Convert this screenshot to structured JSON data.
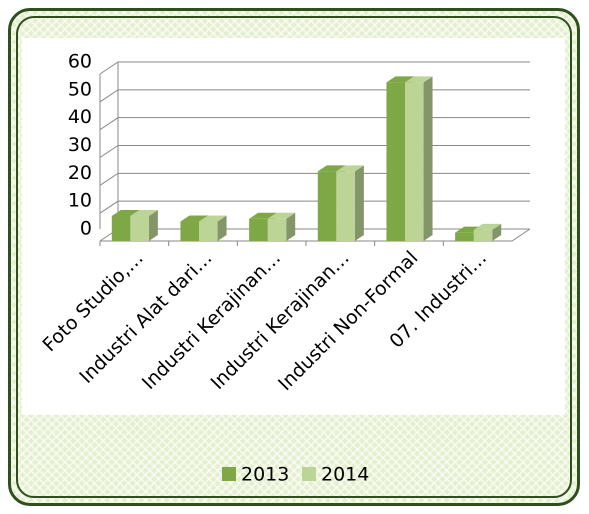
{
  "chart_data": {
    "type": "bar3d",
    "categories": [
      "Foto Studio,…",
      "Industri Alat dari…",
      "Industri Kerajinan…",
      "Industri Kerajinan…",
      "Industri Non-Formal",
      "07.  Industri…"
    ],
    "series": [
      {
        "name": "2013",
        "color": "#7ea845",
        "values": [
          9,
          7,
          8,
          25,
          57,
          3
        ]
      },
      {
        "name": "2014",
        "color": "#bcd596",
        "values": [
          9,
          7,
          8,
          25,
          57,
          4
        ]
      }
    ],
    "ylim": [
      0,
      60
    ],
    "yticks": [
      0,
      10,
      20,
      30,
      40,
      50,
      60
    ],
    "grid": true,
    "legend": "bottom"
  }
}
